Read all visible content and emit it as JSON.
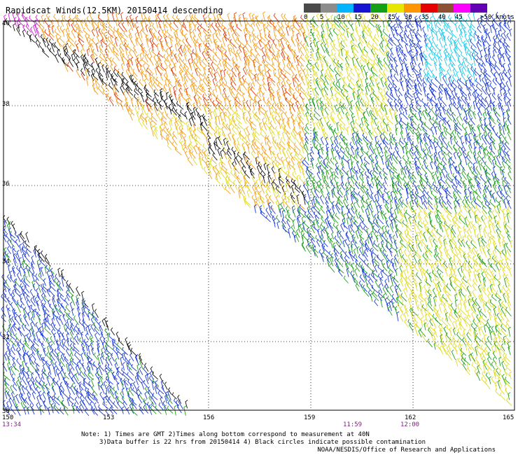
{
  "title": "Rapidscat Winds(12.5KM) 20150414 descending",
  "scale": {
    "labels": [
      "0",
      "5",
      "10",
      "15",
      "20",
      "25",
      "30",
      "35",
      "40",
      "45",
      ">50 knots"
    ],
    "colors": [
      "#4a4a4a",
      "#8c8c8c",
      "#00b4ff",
      "#1414d2",
      "#14a014",
      "#e6e600",
      "#ff9600",
      "#e60000",
      "#8c5032",
      "#ff00ff",
      "#6400b4"
    ]
  },
  "map": {
    "lat_labels": [
      "40",
      "38",
      "36",
      "34",
      "32",
      "30"
    ],
    "lon_labels": [
      "150",
      "153",
      "156",
      "159",
      "162",
      "165"
    ],
    "time_labels": [
      "13:34",
      "11:59",
      "12:00"
    ],
    "grid": "dotted"
  },
  "notes": {
    "line1": "Note: 1) Times are GMT 2)Times along bottom correspond to measurement at 40N",
    "line2": "3)Data buffer is 22 hrs from 20150414 4) Black circles indicate possible contamination"
  },
  "credit": "NOAA/NESDIS/Office of Research and Applications"
}
